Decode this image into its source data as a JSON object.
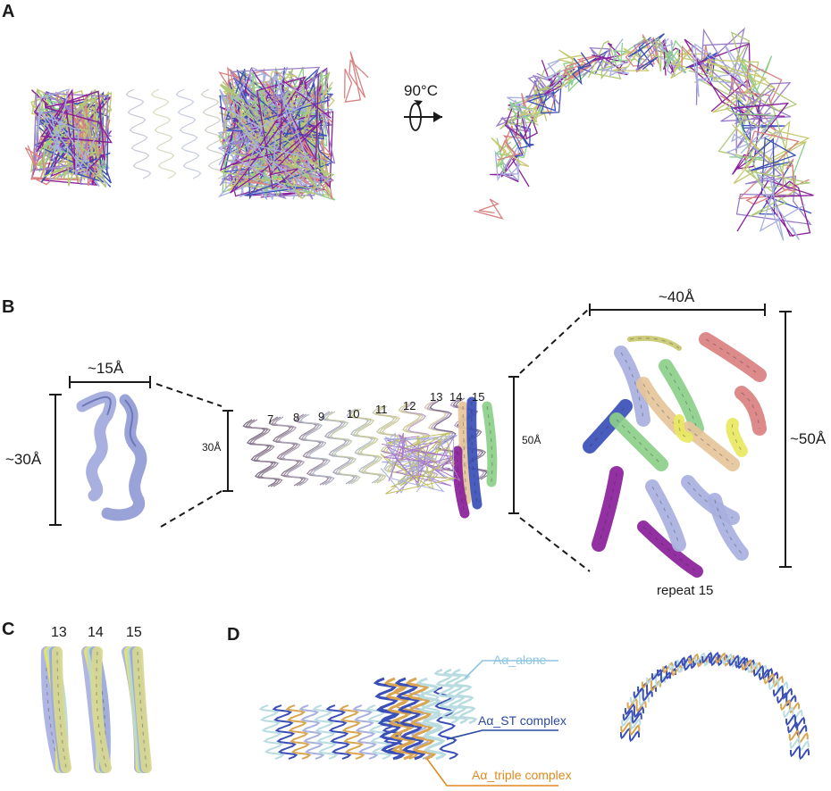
{
  "panels": {
    "A": {
      "letter": "A",
      "rotation_label": "90°C"
    },
    "B": {
      "letter": "B",
      "small_width": "~15Å",
      "small_height": "~30Å",
      "mid_height": "30Å",
      "stack_height": "50Å",
      "big_width": "~40Å",
      "big_height": "~50Å",
      "repeat_numbers": [
        "7",
        "8",
        "9",
        "10",
        "11",
        "12",
        "13",
        "14",
        "15"
      ],
      "repeat_caption": "repeat 15"
    },
    "C": {
      "letter": "C",
      "repeat_numbers": [
        "13",
        "14",
        "15"
      ]
    },
    "D": {
      "letter": "D",
      "legend": {
        "alone": "Aα_alone",
        "st": "Aα_ST complex",
        "triple": "Aα_triple complex"
      }
    }
  },
  "colors": {
    "magenta": "#8a1f9a",
    "lavender": "#a8b0e0",
    "green": "#8ccf8a",
    "wheat": "#e5c49a",
    "salmon": "#d98080",
    "yellow": "#e8e860",
    "blue": "#3a4fb8",
    "olive": "#c8c870",
    "cyan": "#b8e0e0",
    "orange": "#d9a550"
  }
}
